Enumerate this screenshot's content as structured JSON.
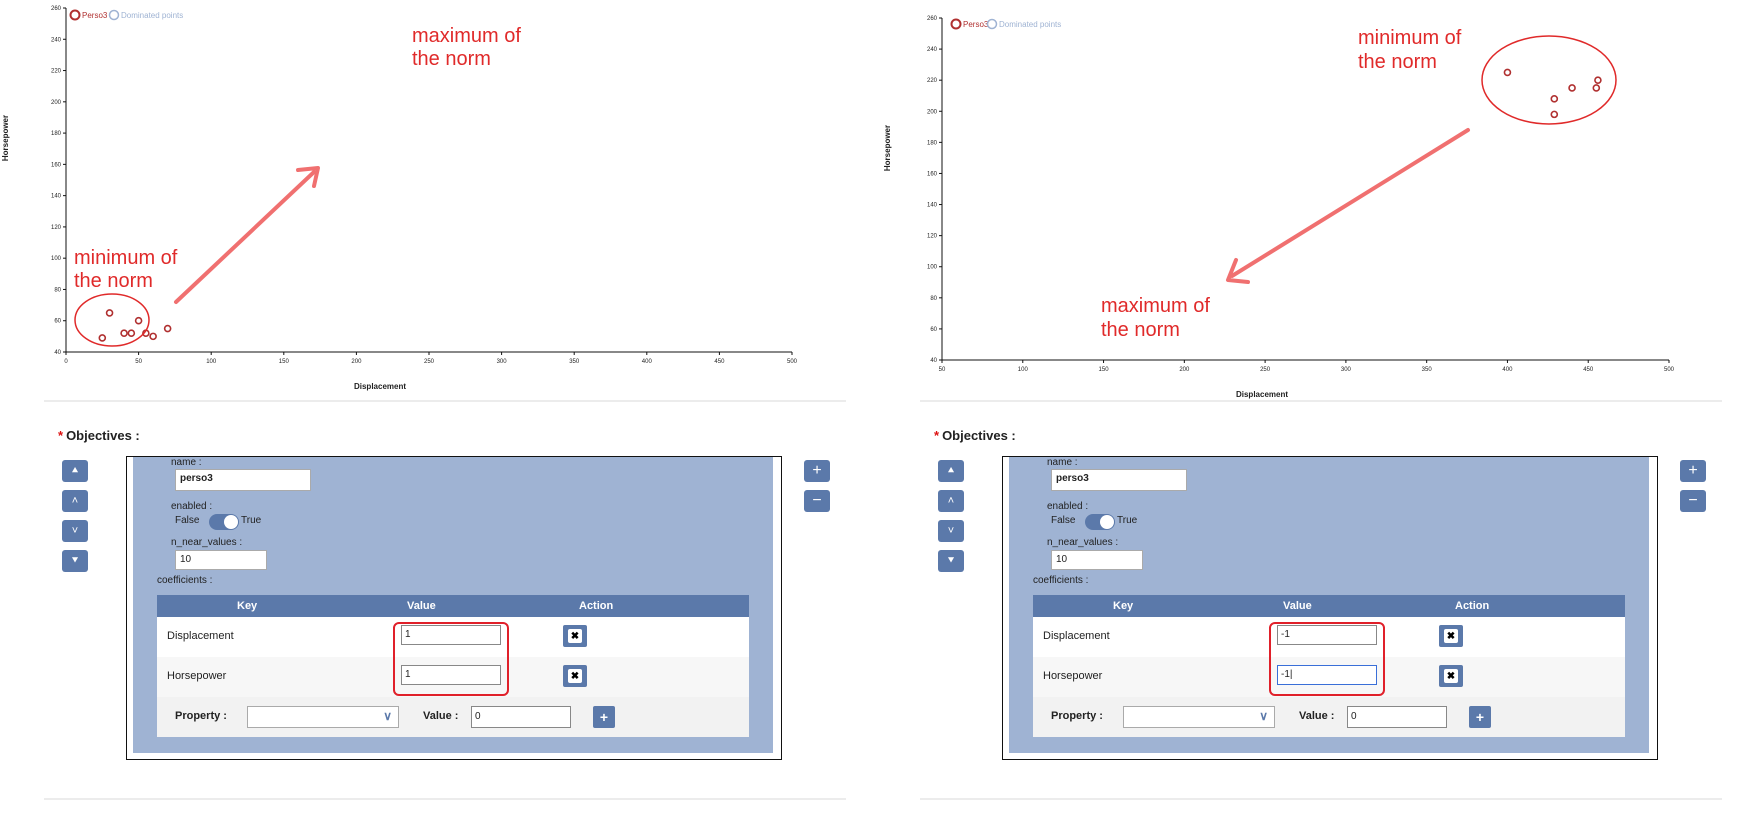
{
  "chart_data": [
    {
      "type": "scatter",
      "xlabel": "Displacement",
      "ylabel": "Horsepower",
      "xlim": [
        0,
        500
      ],
      "ylim": [
        40,
        260
      ],
      "xticks": [
        "0",
        "50",
        "100",
        "150",
        "200",
        "250",
        "300",
        "350",
        "400",
        "450",
        "500"
      ],
      "yticks": [
        "40",
        "60",
        "80",
        "100",
        "120",
        "140",
        "160",
        "180",
        "200",
        "220",
        "240",
        "260"
      ],
      "series": [
        {
          "name": "Perso3",
          "color": "#b03030",
          "x": [
            25,
            30,
            40,
            45,
            50,
            55,
            60,
            70
          ],
          "y": [
            49,
            65,
            52,
            52,
            60,
            52,
            50,
            55
          ]
        },
        {
          "name": "Dominated points",
          "color": "#9fb3d3",
          "x": [],
          "y": []
        }
      ],
      "annotations": [
        "maximum of the norm",
        "minimum of the norm"
      ]
    },
    {
      "type": "scatter",
      "xlabel": "Displacement",
      "ylabel": "Horsepower",
      "xlim": [
        50,
        500
      ],
      "ylim": [
        40,
        260
      ],
      "xticks": [
        "50",
        "100",
        "150",
        "200",
        "250",
        "300",
        "350",
        "400",
        "450",
        "500"
      ],
      "yticks": [
        "40",
        "60",
        "80",
        "100",
        "120",
        "140",
        "160",
        "180",
        "200",
        "220",
        "240",
        "260"
      ],
      "series": [
        {
          "name": "Perso3",
          "color": "#b03030",
          "x": [
            400,
            429,
            429,
            440,
            455,
            456
          ],
          "y": [
            225,
            208,
            198,
            215,
            215,
            220
          ]
        },
        {
          "name": "Dominated points",
          "color": "#9fb3d3",
          "x": [],
          "y": []
        }
      ],
      "annotations": [
        "minimum of the norm",
        "maximum of the norm"
      ]
    }
  ],
  "forms": [
    {
      "section_title": "Objectives :",
      "name_label": "name :",
      "name_value": "perso3",
      "enabled_label": "enabled :",
      "false_label": "False",
      "true_label": "True",
      "near_label": "n_near_values :",
      "near_value": "10",
      "coef_label": "coefficients :",
      "col_key": "Key",
      "col_value": "Value",
      "col_action": "Action",
      "rows": [
        {
          "key": "Displacement",
          "value": "1"
        },
        {
          "key": "Horsepower",
          "value": "1"
        }
      ],
      "property_label": "Property :",
      "value_label": "Value :",
      "value_input": "0"
    },
    {
      "section_title": "Objectives :",
      "name_label": "name :",
      "name_value": "perso3",
      "enabled_label": "enabled :",
      "false_label": "False",
      "true_label": "True",
      "near_label": "n_near_values :",
      "near_value": "10",
      "coef_label": "coefficients :",
      "col_key": "Key",
      "col_value": "Value",
      "col_action": "Action",
      "rows": [
        {
          "key": "Displacement",
          "value": "-1"
        },
        {
          "key": "Horsepower",
          "value": "-1|"
        }
      ],
      "property_label": "Property :",
      "value_label": "Value :",
      "value_input": "0"
    }
  ],
  "theme": {
    "accent": "#5b79aa",
    "panel_bg": "#9fb3d3",
    "annotation": "#e02a2a"
  }
}
